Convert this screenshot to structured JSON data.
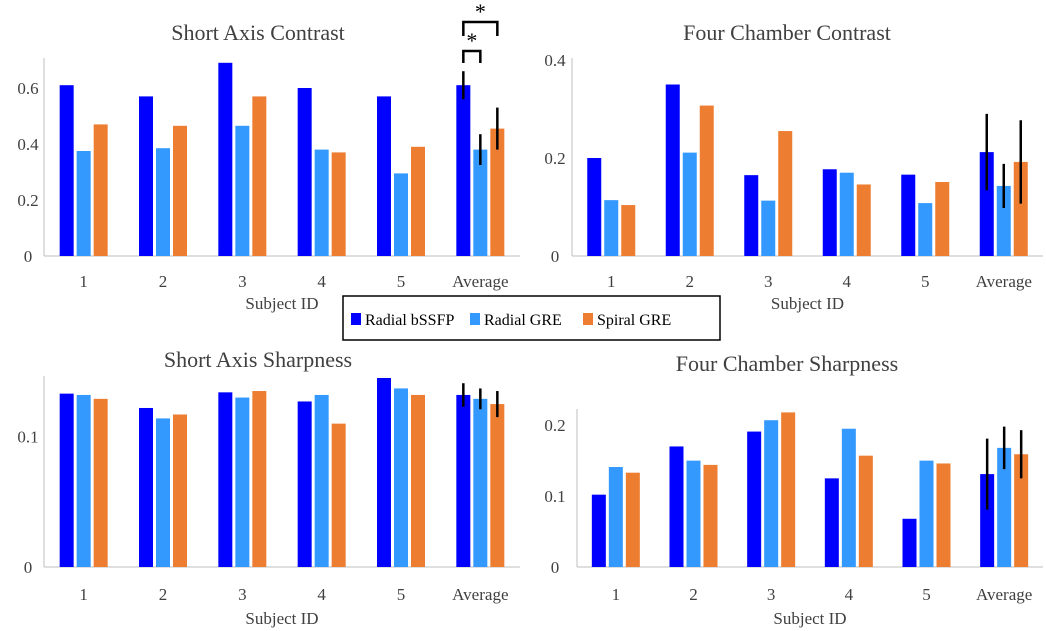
{
  "legend": [
    "Radial bSSFP",
    "Radial GRE",
    "Spiral GRE"
  ],
  "colors": {
    "Radial bSSFP": "#0000FF",
    "Radial GRE": "#3399FF",
    "Spiral GRE": "#ED7D31",
    "error": "#000000",
    "axis": "#BFBFBF"
  },
  "chart_data": [
    {
      "type": "bar",
      "title": "Short Axis Contrast",
      "xlabel": "Subject ID",
      "ylabel": "",
      "categories": [
        "1",
        "2",
        "3",
        "4",
        "5",
        "Average"
      ],
      "ylim": [
        0,
        0.7
      ],
      "yticks": [
        0,
        0.2,
        0.4,
        0.6
      ],
      "ytick_labels": [
        "0",
        "0.2",
        "0.4",
        "0.6"
      ],
      "series": [
        {
          "name": "Radial bSSFP",
          "values": [
            0.61,
            0.57,
            0.69,
            0.6,
            0.57,
            0.61
          ],
          "error": [
            0,
            0,
            0,
            0,
            0,
            0.05
          ]
        },
        {
          "name": "Radial GRE",
          "values": [
            0.375,
            0.385,
            0.465,
            0.38,
            0.295,
            0.38
          ],
          "error": [
            0,
            0,
            0,
            0,
            0,
            0.055
          ]
        },
        {
          "name": "Spiral GRE",
          "values": [
            0.47,
            0.465,
            0.57,
            0.37,
            0.39,
            0.455
          ],
          "error": [
            0,
            0,
            0,
            0,
            0,
            0.075
          ]
        }
      ],
      "annotations": [
        {
          "text": "*",
          "category": "Average",
          "from_series": 0,
          "to_series": 1,
          "level": 1
        },
        {
          "text": "*",
          "category": "Average",
          "from_series": 0,
          "to_series": 2,
          "level": 2
        }
      ]
    },
    {
      "type": "bar",
      "title": "Four Chamber Contrast",
      "xlabel": "Subject ID",
      "ylabel": "",
      "categories": [
        "1",
        "2",
        "3",
        "4",
        "5",
        "Average"
      ],
      "ylim": [
        0,
        0.4
      ],
      "yticks": [
        0,
        0.2,
        0.4
      ],
      "ytick_labels": [
        "0",
        "0.2",
        "0.4"
      ],
      "series": [
        {
          "name": "Radial bSSFP",
          "values": [
            0.2,
            0.35,
            0.165,
            0.177,
            0.166,
            0.212
          ],
          "error": [
            0,
            0,
            0,
            0,
            0,
            0.078
          ]
        },
        {
          "name": "Radial GRE",
          "values": [
            0.114,
            0.211,
            0.113,
            0.17,
            0.108,
            0.143
          ],
          "error": [
            0,
            0,
            0,
            0,
            0,
            0.045
          ]
        },
        {
          "name": "Spiral GRE",
          "values": [
            0.104,
            0.307,
            0.255,
            0.146,
            0.151,
            0.192
          ],
          "error": [
            0,
            0,
            0,
            0,
            0,
            0.085
          ]
        }
      ]
    },
    {
      "type": "bar",
      "title": "Short Axis Sharpness",
      "xlabel": "Subject ID",
      "ylabel": "",
      "categories": [
        "1",
        "2",
        "3",
        "4",
        "5",
        "Average"
      ],
      "ylim": [
        0,
        0.145
      ],
      "yticks": [
        0,
        0.1
      ],
      "ytick_labels": [
        "0",
        "0.1"
      ],
      "series": [
        {
          "name": "Radial bSSFP",
          "values": [
            0.133,
            0.122,
            0.134,
            0.127,
            0.145,
            0.132
          ],
          "error": [
            0,
            0,
            0,
            0,
            0,
            0.009
          ]
        },
        {
          "name": "Radial GRE",
          "values": [
            0.132,
            0.114,
            0.13,
            0.132,
            0.137,
            0.129
          ],
          "error": [
            0,
            0,
            0,
            0,
            0,
            0.008
          ]
        },
        {
          "name": "Spiral GRE",
          "values": [
            0.129,
            0.117,
            0.135,
            0.11,
            0.132,
            0.125
          ],
          "error": [
            0,
            0,
            0,
            0,
            0,
            0.01
          ]
        }
      ]
    },
    {
      "type": "bar",
      "title": "Four Chamber Sharpness",
      "xlabel": "Subject ID",
      "ylabel": "",
      "categories": [
        "1",
        "2",
        "3",
        "4",
        "5",
        "Average"
      ],
      "ylim": [
        0,
        0.22
      ],
      "yticks": [
        0,
        0.1,
        0.2
      ],
      "ytick_labels": [
        "0",
        "0.1",
        "0.2"
      ],
      "series": [
        {
          "name": "Radial bSSFP",
          "values": [
            0.102,
            0.17,
            0.191,
            0.125,
            0.068,
            0.131
          ],
          "error": [
            0,
            0,
            0,
            0,
            0,
            0.05
          ]
        },
        {
          "name": "Radial GRE",
          "values": [
            0.141,
            0.15,
            0.207,
            0.195,
            0.15,
            0.168
          ],
          "error": [
            0,
            0,
            0,
            0,
            0,
            0.03
          ]
        },
        {
          "name": "Spiral GRE",
          "values": [
            0.133,
            0.144,
            0.218,
            0.157,
            0.146,
            0.159
          ],
          "error": [
            0,
            0,
            0,
            0,
            0,
            0.034
          ]
        }
      ]
    }
  ]
}
